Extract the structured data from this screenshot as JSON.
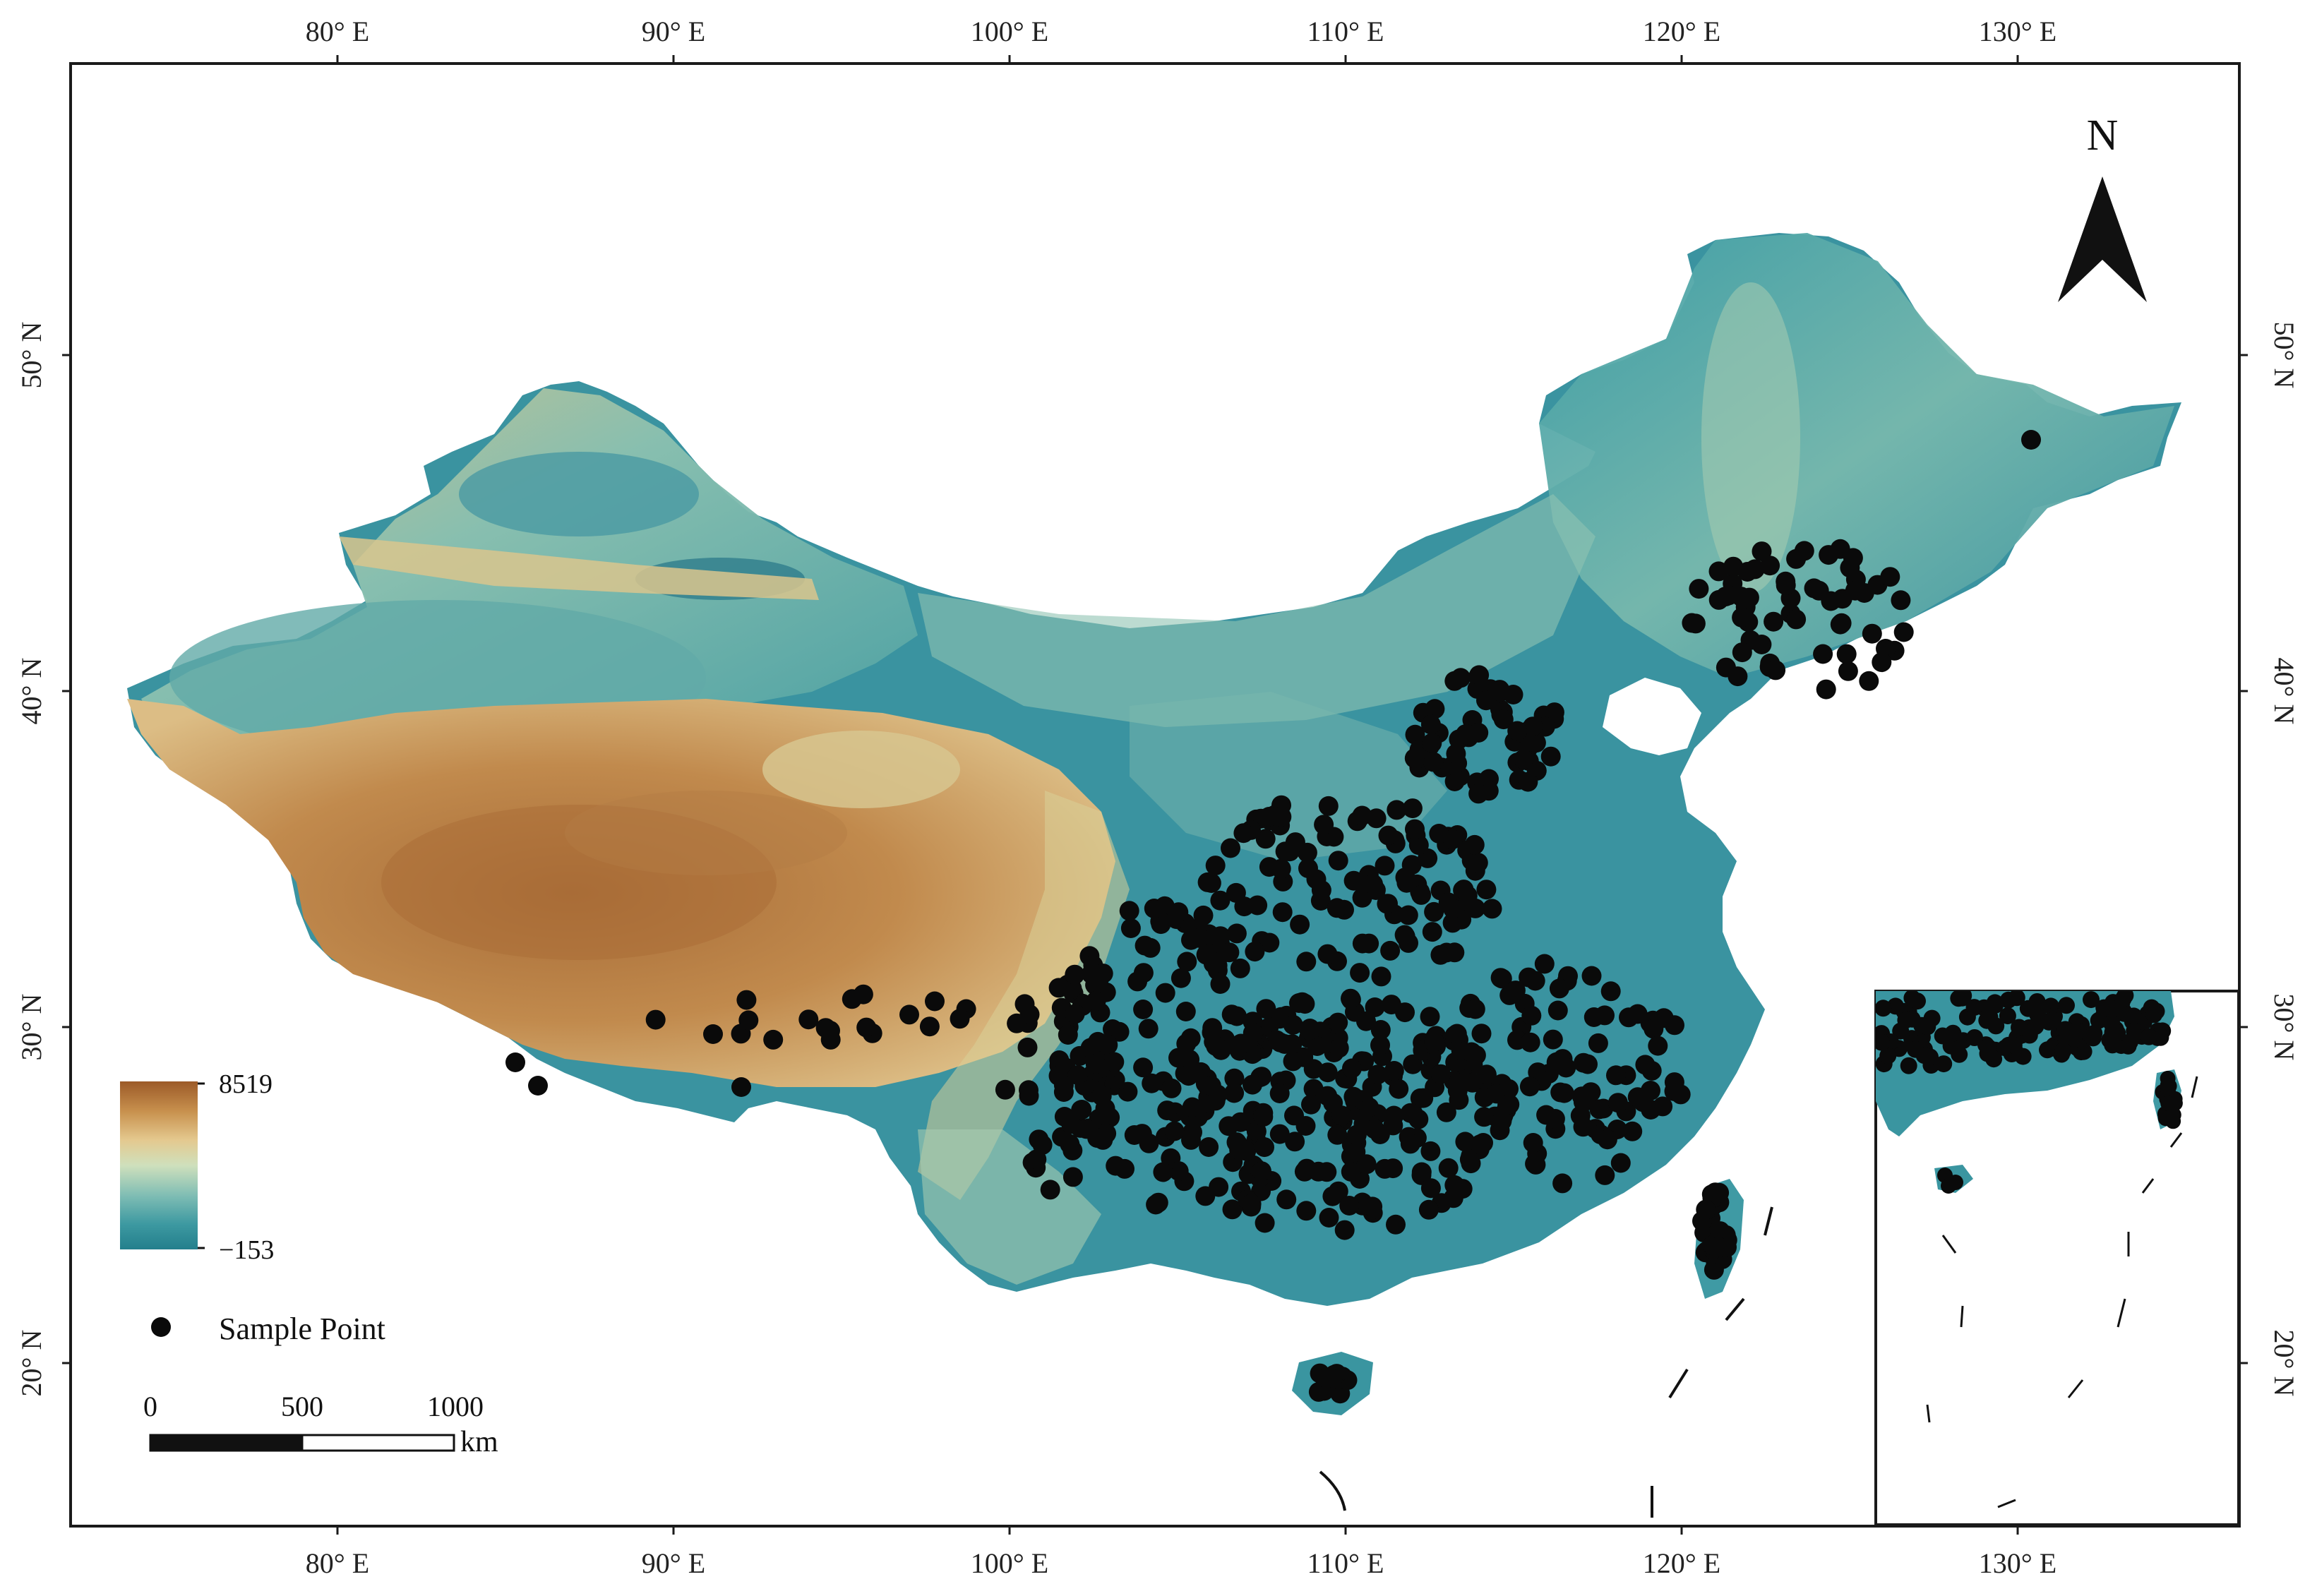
{
  "map": {
    "north_arrow": {
      "label": "N",
      "icon": "north-arrow-icon"
    },
    "lon_ticks": [
      {
        "value": 80,
        "label": "80° E"
      },
      {
        "value": 90,
        "label": "90° E"
      },
      {
        "value": 100,
        "label": "100° E"
      },
      {
        "value": 110,
        "label": "110° E"
      },
      {
        "value": 120,
        "label": "120° E"
      },
      {
        "value": 130,
        "label": "130° E"
      }
    ],
    "lat_ticks": [
      {
        "value": 50,
        "label": "50° N"
      },
      {
        "value": 40,
        "label": "40° N"
      },
      {
        "value": 30,
        "label": "30° N"
      },
      {
        "value": 20,
        "label": "20° N"
      }
    ],
    "elevation_legend": {
      "max_label": "8519",
      "min_label": "−153",
      "colors": [
        "#9c5a28",
        "#c8914e",
        "#e4c98f",
        "#cfe0bc",
        "#7fbdb4",
        "#3d99a1",
        "#237f8c"
      ]
    },
    "sample_legend": {
      "label": "Sample Point",
      "icon": "sample-point-icon"
    },
    "scale_bar": {
      "ticks": [
        "0",
        "500",
        "1000"
      ],
      "unit": "km"
    },
    "colors": {
      "frame": "#1a1a1a",
      "points": "#0a0a0a",
      "lowland": "#2f8a98",
      "plateau": "#b07a45"
    }
  }
}
